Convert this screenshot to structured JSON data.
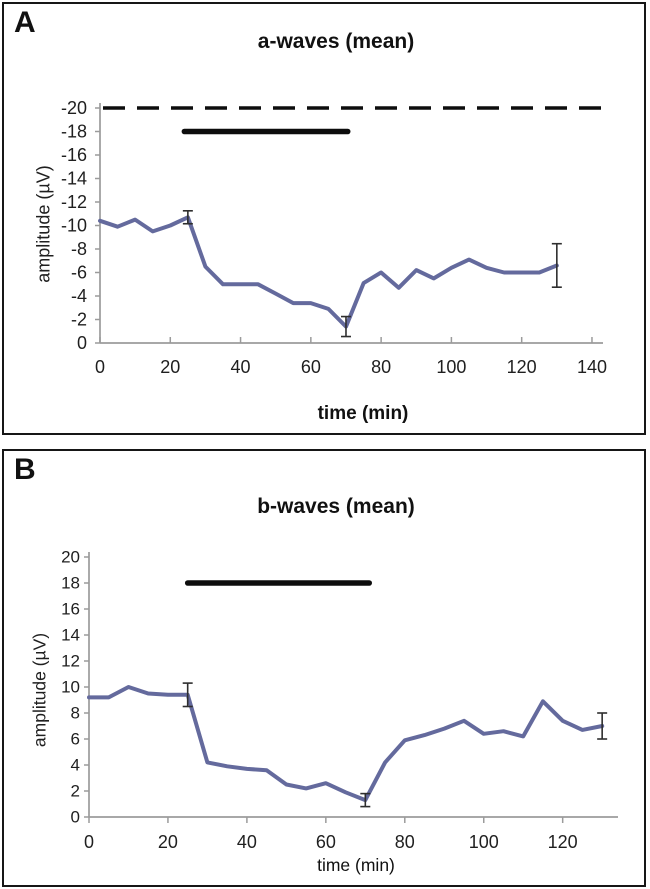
{
  "figure_type": "two-panel ERG amplitude time-course figure",
  "chart_data": [
    {
      "type": "line",
      "panel_label": "A",
      "title": "a-waves (mean)",
      "xlabel": "time (min)",
      "ylabel": "amplitude (µV)",
      "series_name": "mean a-wave amplitude",
      "x": [
        0,
        5,
        10,
        15,
        20,
        25,
        30,
        35,
        40,
        45,
        50,
        55,
        60,
        65,
        70,
        75,
        80,
        85,
        90,
        95,
        100,
        105,
        110,
        115,
        120,
        125,
        130
      ],
      "values": [
        -10.4,
        -9.9,
        -10.5,
        -9.5,
        -10.0,
        -10.7,
        -6.5,
        -5.0,
        -5.0,
        -5.0,
        -4.2,
        -3.4,
        -3.4,
        -2.9,
        -1.4,
        -5.1,
        -6.0,
        -4.7,
        -6.2,
        -5.5,
        -6.4,
        -7.1,
        -6.4,
        -6.0,
        -6.0,
        -6.0,
        -6.6
      ],
      "error_bars": [
        {
          "x": 25,
          "y": -10.7,
          "err": 0.55
        },
        {
          "x": 70,
          "y": -1.4,
          "err": 0.85
        },
        {
          "x": 130,
          "y": -6.6,
          "err": 1.85
        }
      ],
      "x_ticks": [
        0,
        20,
        40,
        60,
        80,
        100,
        120,
        140
      ],
      "xlim": [
        0,
        142
      ],
      "y_ticks": [
        -20,
        -18,
        -16,
        -14,
        -12,
        -10,
        -8,
        -6,
        -4,
        -2,
        0
      ],
      "ylim": [
        -20,
        0
      ],
      "y_axis_orientation": "inverted (−20 at top, 0 at bottom)",
      "dashed_line_y": -20,
      "stim_bar": {
        "y": -18,
        "x_start": 24,
        "x_end": 70.5
      },
      "line_color": "#646a9d",
      "grid": false,
      "legend": false
    },
    {
      "type": "line",
      "panel_label": "B",
      "title": "b-waves (mean)",
      "xlabel": "time (min)",
      "ylabel": "amplitude (µV)",
      "series_name": "mean b-wave amplitude",
      "x": [
        0,
        5,
        10,
        15,
        20,
        25,
        30,
        35,
        40,
        45,
        50,
        55,
        60,
        65,
        70,
        75,
        80,
        85,
        90,
        95,
        100,
        105,
        110,
        115,
        120,
        125,
        130
      ],
      "values": [
        9.2,
        9.2,
        10.0,
        9.5,
        9.4,
        9.4,
        4.2,
        3.9,
        3.7,
        3.6,
        2.5,
        2.2,
        2.6,
        1.9,
        1.3,
        4.2,
        5.9,
        6.3,
        6.8,
        7.4,
        6.4,
        6.6,
        6.2,
        8.9,
        7.4,
        6.7,
        7.0
      ],
      "error_bars": [
        {
          "x": 25,
          "y": 9.4,
          "err": 0.9
        },
        {
          "x": 70,
          "y": 1.3,
          "err": 0.5
        },
        {
          "x": 130,
          "y": 7.0,
          "err": 1.0
        }
      ],
      "x_ticks": [
        0,
        20,
        40,
        60,
        80,
        100,
        120
      ],
      "xlim": [
        0,
        133
      ],
      "y_ticks": [
        20,
        18,
        16,
        14,
        12,
        10,
        8,
        6,
        4,
        2,
        0
      ],
      "ylim": [
        0,
        20
      ],
      "y_axis_orientation": "normal (20 at top, 0 at bottom)",
      "dashed_line_y": null,
      "stim_bar": {
        "y": 18,
        "x_start": 25,
        "x_end": 71
      },
      "line_color": "#646a9d",
      "grid": false,
      "legend": false
    }
  ],
  "style_colors": {
    "line": "#646a9d",
    "annotation_black": "#0d0d0d",
    "axis_gray": "#9b9b9b",
    "error_bar": "#2e2e2e"
  }
}
